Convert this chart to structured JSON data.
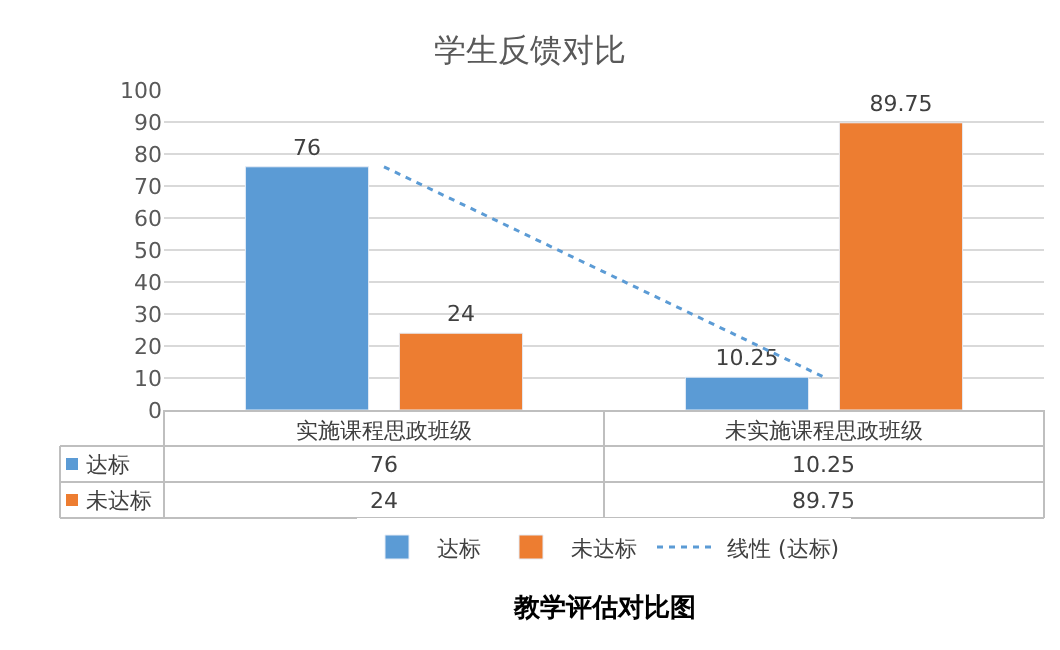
{
  "chart_data": {
    "type": "bar",
    "title": "学生反馈对比",
    "categories": [
      "实施课程思政班级",
      "未实施课程思政班级"
    ],
    "series": [
      {
        "name": "达标",
        "color": "#5b9bd5",
        "values": [
          76,
          10.25
        ],
        "value_labels": [
          "76",
          "10.25"
        ]
      },
      {
        "name": "未达标",
        "color": "#ed7d31",
        "values": [
          24,
          89.75
        ],
        "value_labels": [
          "24",
          "89.75"
        ]
      },
      {
        "name": "线性 (达标)",
        "type": "line",
        "line_style": "dotted",
        "color": "#5b9bd5",
        "values": [
          76,
          10.25
        ]
      }
    ],
    "ylim": [
      0,
      100
    ],
    "yticks": [
      0,
      10,
      20,
      30,
      40,
      50,
      60,
      70,
      80,
      90,
      100
    ],
    "grid": "y",
    "legend": "bottom",
    "annotations": [
      "教学评估对比图"
    ]
  }
}
